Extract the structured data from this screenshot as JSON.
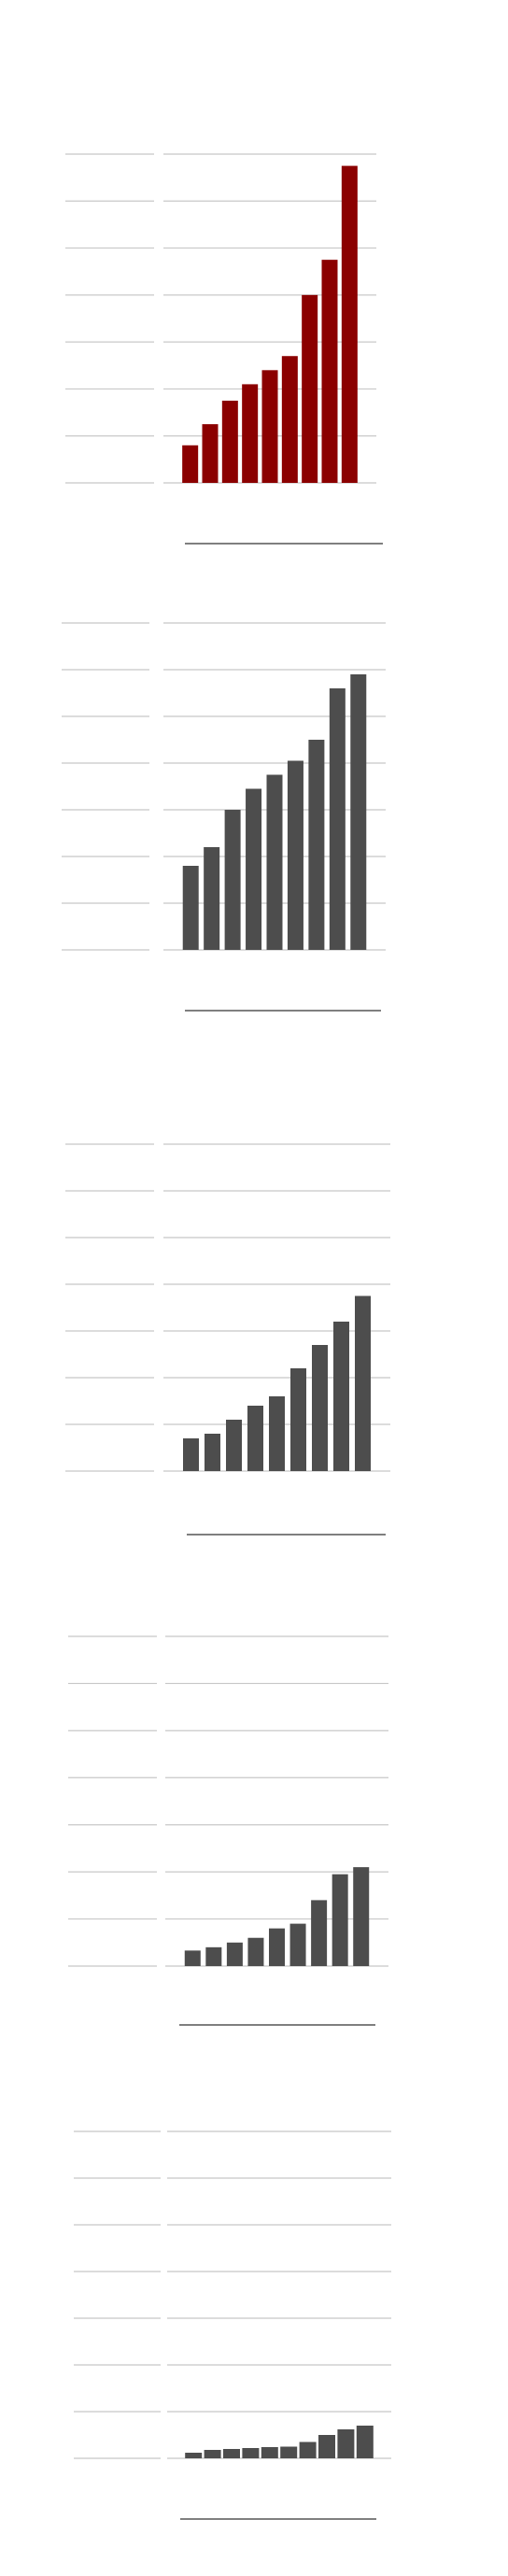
{
  "chart_data": [
    {
      "type": "bar",
      "title": "",
      "xlabel": "",
      "ylabel": "",
      "categories": [
        "",
        "",
        "",
        "",
        "",
        "",
        "",
        "",
        ""
      ],
      "values": [
        0.8,
        1.25,
        1.75,
        2.1,
        2.4,
        2.7,
        4.0,
        4.75,
        6.75
      ],
      "ylim": [
        0,
        7
      ],
      "ticks": [
        0,
        1,
        2,
        3,
        4,
        5,
        6,
        7
      ],
      "tick_labels": [
        "",
        "",
        "",
        "",
        "",
        "",
        "",
        ""
      ],
      "grid": true,
      "bar_color": "#8b0000"
    },
    {
      "type": "bar",
      "title": "",
      "xlabel": "",
      "ylabel": "",
      "categories": [
        "",
        "",
        "",
        "",
        "",
        "",
        "",
        "",
        ""
      ],
      "values": [
        1.8,
        2.2,
        3.0,
        3.45,
        3.75,
        4.05,
        4.5,
        5.6,
        5.9
      ],
      "ylim": [
        0,
        7
      ],
      "ticks": [
        0,
        1,
        2,
        3,
        4,
        5,
        6,
        7
      ],
      "tick_labels": [
        "",
        "",
        "",
        "",
        "",
        "",
        "",
        ""
      ],
      "grid": true,
      "bar_color": "#4d4d4d"
    },
    {
      "type": "bar",
      "title": "",
      "xlabel": "",
      "ylabel": "",
      "categories": [
        "",
        "",
        "",
        "",
        "",
        "",
        "",
        "",
        ""
      ],
      "values": [
        0.7,
        0.8,
        1.1,
        1.4,
        1.6,
        2.2,
        2.7,
        3.2,
        3.75
      ],
      "ylim": [
        0,
        7
      ],
      "ticks": [
        0,
        1,
        2,
        3,
        4,
        5,
        6,
        7
      ],
      "tick_labels": [
        "",
        "",
        "",
        "",
        "",
        "",
        "",
        ""
      ],
      "grid": true,
      "bar_color": "#4d4d4d"
    },
    {
      "type": "bar",
      "title": "",
      "xlabel": "",
      "ylabel": "",
      "categories": [
        "",
        "",
        "",
        "",
        "",
        "",
        "",
        "",
        ""
      ],
      "values": [
        0.33,
        0.4,
        0.5,
        0.6,
        0.8,
        0.9,
        1.4,
        1.95,
        2.1
      ],
      "ylim": [
        0,
        7
      ],
      "ticks": [
        0,
        1,
        2,
        3,
        4,
        5,
        6,
        7
      ],
      "tick_labels": [
        "",
        "",
        "",
        "",
        "",
        "",
        "",
        ""
      ],
      "grid": true,
      "bar_color": "#4d4d4d"
    },
    {
      "type": "bar",
      "title": "",
      "xlabel": "",
      "ylabel": "",
      "categories": [
        "",
        "",
        "",
        "",
        "",
        "",
        "",
        "",
        "",
        ""
      ],
      "values": [
        0.12,
        0.18,
        0.2,
        0.22,
        0.24,
        0.25,
        0.35,
        0.5,
        0.62,
        0.7
      ],
      "ylim": [
        0,
        7
      ],
      "ticks": [
        0,
        1,
        2,
        3,
        4,
        5,
        6,
        7
      ],
      "tick_labels": [
        "",
        "",
        "",
        "",
        "",
        "",
        "",
        ""
      ],
      "grid": true,
      "bar_color": "#4d4d4d"
    }
  ]
}
